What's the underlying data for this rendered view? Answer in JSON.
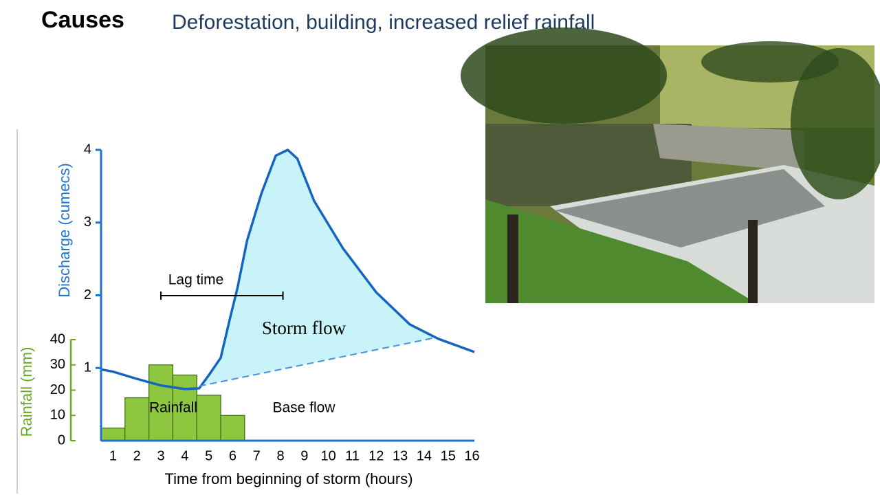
{
  "heading": "Causes",
  "subheading": "Deforestation, building, increased relief rainfall",
  "chart_data": {
    "type": "line",
    "y_label": "Discharge (cumecs)",
    "y2_label": "Rainfall (mm)",
    "x_label": "Time from beginning of storm (hours)",
    "annotations": [
      "Lag time",
      "Storm flow",
      "Rainfall",
      "Base flow"
    ],
    "lag_time": [
      3,
      8.1
    ],
    "xlim": [
      0.5,
      16.1
    ],
    "xticks": [
      1,
      2,
      3,
      4,
      5,
      6,
      7,
      8,
      9,
      10,
      11,
      12,
      13,
      14,
      15,
      16
    ],
    "ylim": [
      0,
      4
    ],
    "yticks": [
      1,
      2,
      3,
      4
    ],
    "y2lim": [
      0,
      40
    ],
    "y2ticks": [
      0,
      10,
      20,
      30,
      40
    ],
    "storm_flow_color": "#c8f4f9",
    "series": [
      {
        "color": "#1565c0",
        "x": [
          0.5,
          1,
          2,
          3,
          4,
          4.6,
          5,
          5.5,
          5.9,
          6.2,
          6.6,
          7.2,
          7.8,
          8.3,
          8.7,
          9.4,
          10.6,
          12,
          13.4,
          14.6,
          16.1
        ],
        "values": [
          0.98,
          0.95,
          0.85,
          0.76,
          0.71,
          0.72,
          0.9,
          1.14,
          1.7,
          2.1,
          2.75,
          3.4,
          3.92,
          4.0,
          3.88,
          3.3,
          2.65,
          2.04,
          1.6,
          1.4,
          1.22
        ]
      },
      {
        "color": "#4a90e2",
        "dashed": true,
        "x": [
          4.6,
          14.5
        ],
        "values": [
          0.75,
          1.42
        ]
      },
      {
        "type": "bar",
        "axis": "y2",
        "color": "#8dc63f",
        "x": [
          1,
          2,
          3,
          4,
          5,
          6
        ],
        "values": [
          5,
          17,
          30,
          26,
          18,
          10
        ]
      }
    ]
  }
}
